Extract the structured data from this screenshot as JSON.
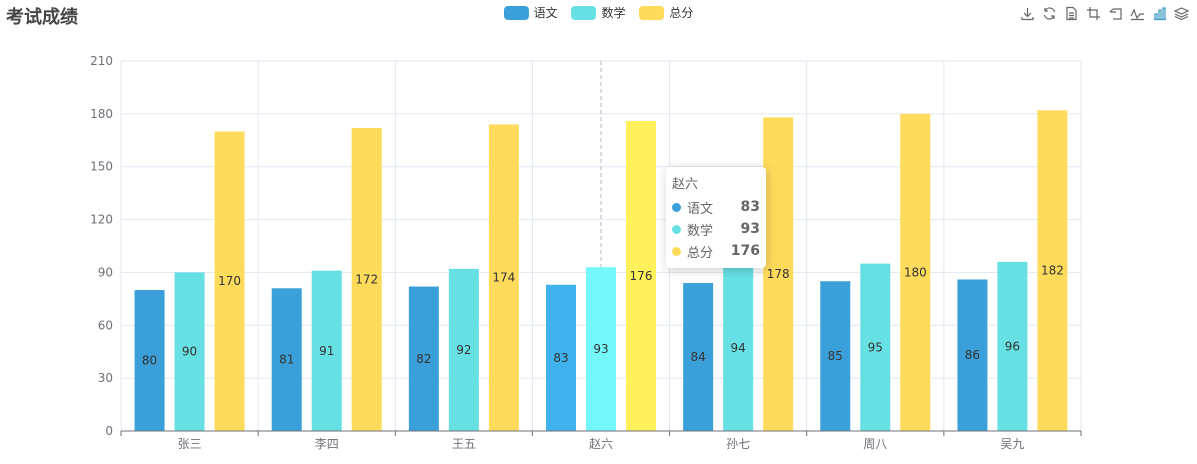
{
  "title": "考试成绩",
  "chart_data": {
    "type": "bar",
    "title": "考试成绩",
    "categories": [
      "张三",
      "李四",
      "王五",
      "赵六",
      "孙七",
      "周八",
      "吴九"
    ],
    "series": [
      {
        "name": "语文",
        "color": "#3ba0d9",
        "highlight": "#40b3ee",
        "values": [
          80,
          81,
          82,
          83,
          84,
          85,
          86
        ]
      },
      {
        "name": "数学",
        "color": "#67e0e3",
        "highlight": "#74f8fc",
        "values": [
          90,
          91,
          92,
          93,
          94,
          95,
          96
        ]
      },
      {
        "name": "总分",
        "color": "#ffdb5c",
        "highlight": "#fff05c",
        "values": [
          170,
          172,
          174,
          176,
          178,
          180,
          182
        ]
      }
    ],
    "yticks": [
      0,
      30,
      60,
      90,
      120,
      150,
      180,
      210
    ],
    "ylim": [
      0,
      210
    ],
    "xlabel": "",
    "ylabel": "",
    "legend_position": "top-center",
    "grid": true,
    "highlighted_category": "赵六"
  },
  "tooltip": {
    "title": "赵六",
    "rows": [
      {
        "name": "语文",
        "value": "83",
        "color": "#3ba0d9"
      },
      {
        "name": "数学",
        "value": "93",
        "color": "#67e0e3"
      },
      {
        "name": "总分",
        "value": "176",
        "color": "#ffdb5c"
      }
    ]
  },
  "toolbox": {
    "icons": [
      "download-icon",
      "refresh-icon",
      "data-view-icon",
      "zoom-icon",
      "zoom-reset-icon",
      "line-chart-icon",
      "bar-chart-icon",
      "stack-icon"
    ]
  }
}
